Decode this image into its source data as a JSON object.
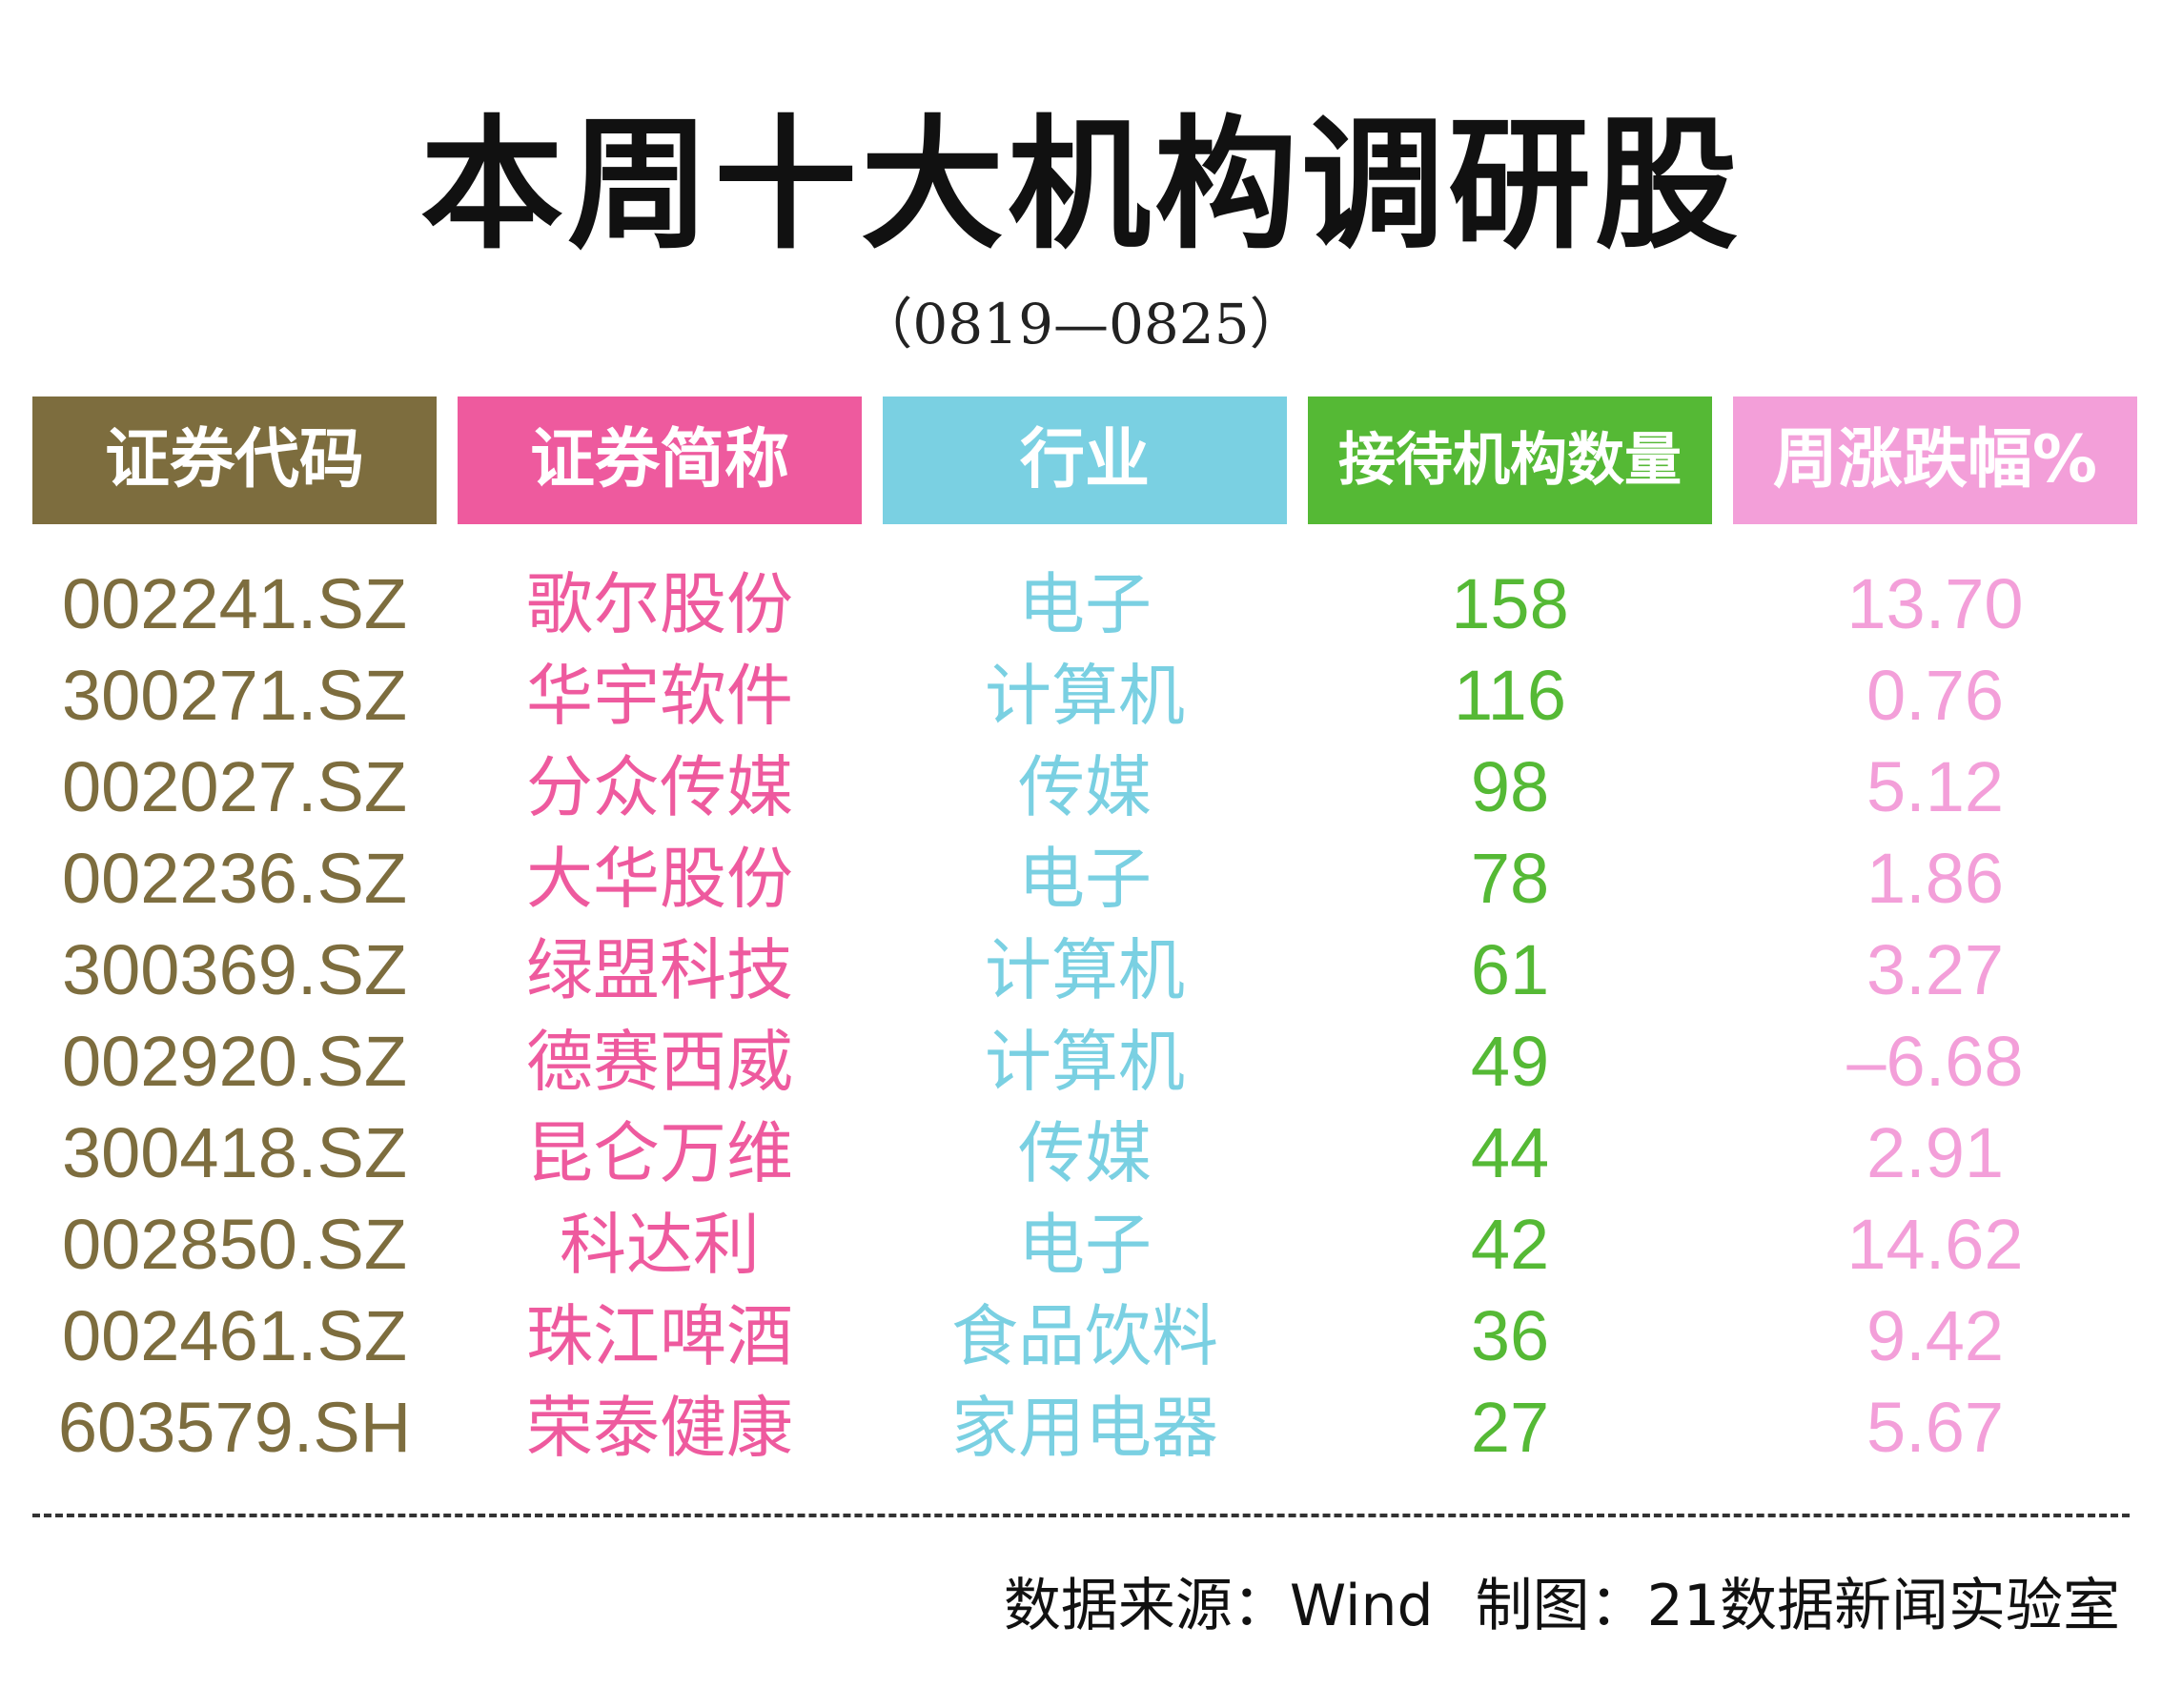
{
  "title": "本周十大机构调研股",
  "subtitle": "（0819—0825）",
  "colors": {
    "code": "#7d6d3e",
    "name": "#ee5a9e",
    "industry": "#7ad0e2",
    "institutions": "#55b935",
    "change": "#f39fd9"
  },
  "chart_data": {
    "type": "table",
    "columns": [
      "证券代码",
      "证券简称",
      "行业",
      "接待机构数量",
      "周涨跌幅%"
    ],
    "rows": [
      [
        "002241.SZ",
        "歌尔股份",
        "电子",
        "158",
        "13.70"
      ],
      [
        "300271.SZ",
        "华宇软件",
        "计算机",
        "116",
        "0.76"
      ],
      [
        "002027.SZ",
        "分众传媒",
        "传媒",
        "98",
        "5.12"
      ],
      [
        "002236.SZ",
        "大华股份",
        "电子",
        "78",
        "1.86"
      ],
      [
        "300369.SZ",
        "绿盟科技",
        "计算机",
        "61",
        "3.27"
      ],
      [
        "002920.SZ",
        "德赛西威",
        "计算机",
        "49",
        "–6.68"
      ],
      [
        "300418.SZ",
        "昆仑万维",
        "传媒",
        "44",
        "2.91"
      ],
      [
        "002850.SZ",
        "科达利",
        "电子",
        "42",
        "14.62"
      ],
      [
        "002461.SZ",
        "珠江啤酒",
        "食品饮料",
        "36",
        "9.42"
      ],
      [
        "603579.SH",
        "荣泰健康",
        "家用电器",
        "27",
        "5.67"
      ]
    ]
  },
  "footer": {
    "source": "数据来源：Wind",
    "credit": "制图：21数据新闻实验室"
  }
}
